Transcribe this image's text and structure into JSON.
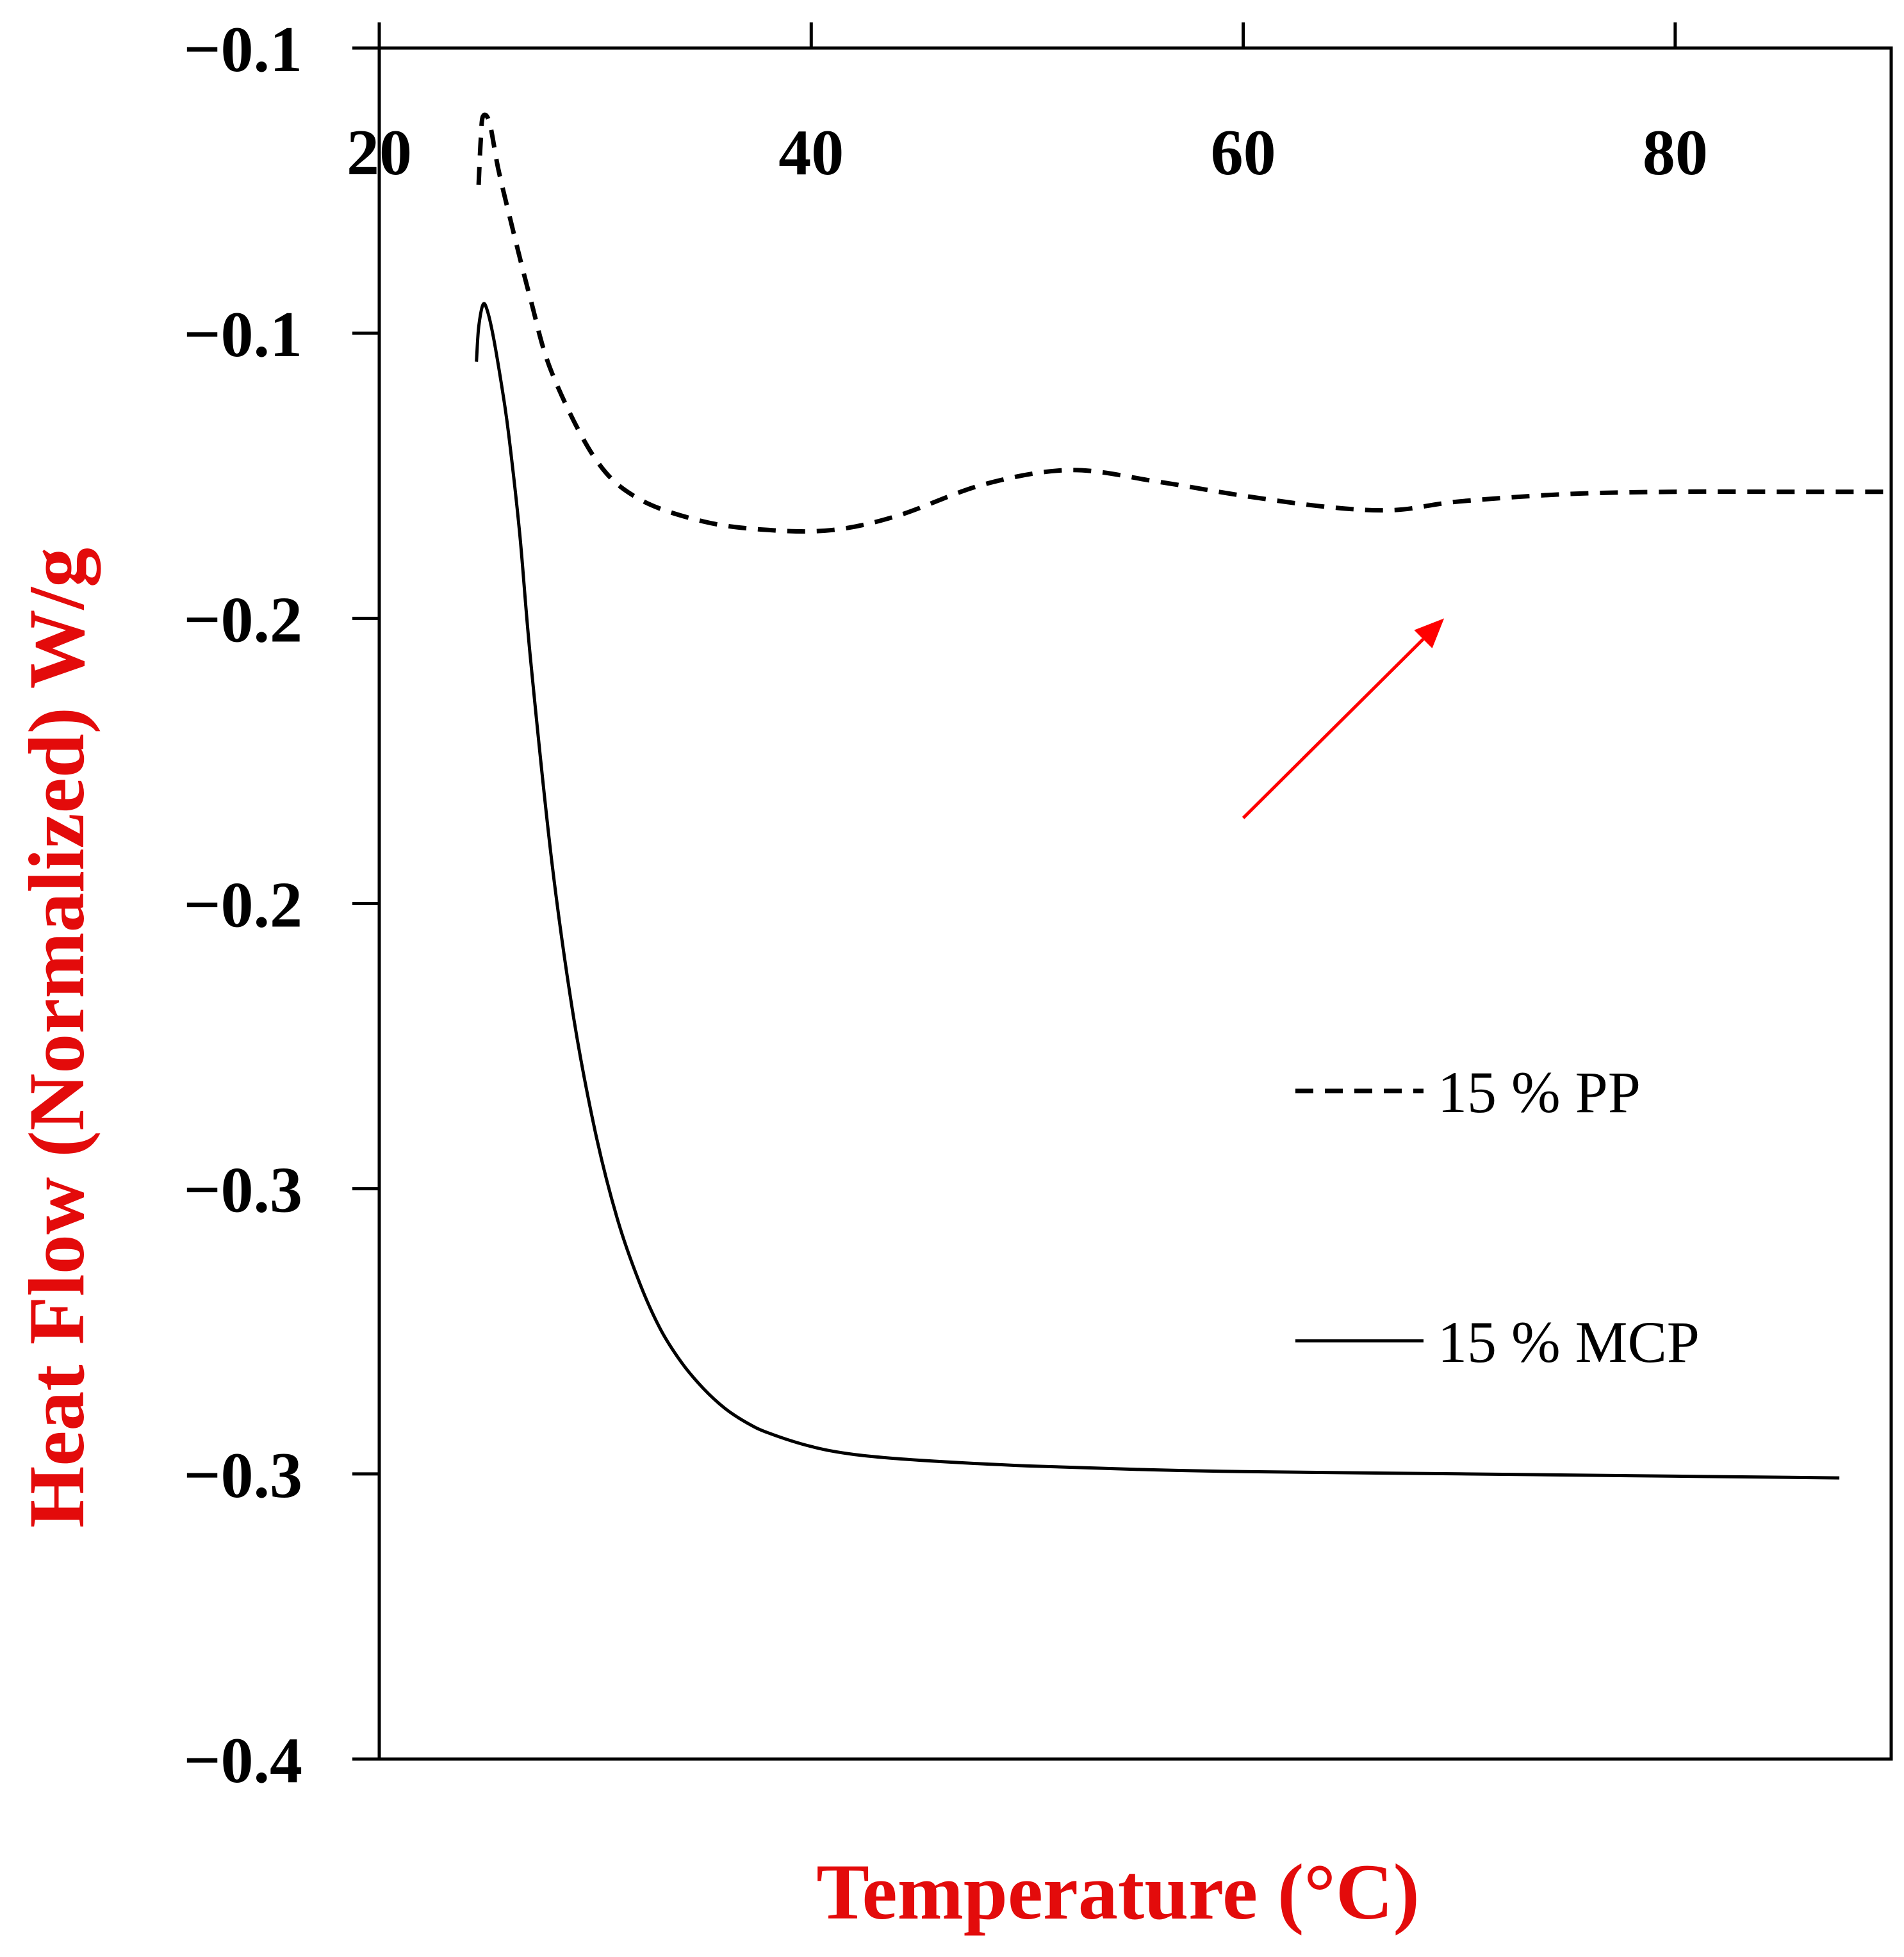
{
  "colors": {
    "axis_title": "#e30b0b",
    "arrow": "#ff0000",
    "series": "#000000",
    "background": "#ffffff"
  },
  "chart_data": {
    "type": "line",
    "title": "",
    "xlabel": "Temperature (°C)",
    "ylabel": "Heat Flow (Normalized) W/g",
    "xlim": [
      20,
      90
    ],
    "ylim": [
      -0.4,
      -0.1
    ],
    "x_ticks": [
      20,
      40,
      60,
      80
    ],
    "x_tick_labels": [
      "20",
      "40",
      "60",
      "80"
    ],
    "x_axis_position": "top",
    "y_ticks": [
      -0.1,
      -0.15,
      -0.2,
      -0.25,
      -0.3,
      -0.35,
      -0.4
    ],
    "y_tick_labels": [
      "−0.1",
      "−0.1",
      "−0.2",
      "−0.2",
      "−0.3",
      "−0.3",
      "−0.4"
    ],
    "grid": false,
    "legend_position": "right-center",
    "annotations": [
      {
        "type": "arrow",
        "from": {
          "x": 60,
          "y": -0.235
        },
        "to": {
          "x": 69.3,
          "y": -0.2
        },
        "color": "#ff0000"
      }
    ],
    "series": [
      {
        "name": "15 % PP",
        "style": "dashed",
        "x": [
          24.6,
          24.7,
          24.8,
          25.1,
          25.5,
          26.0,
          27.0,
          28.0,
          30.0,
          32.0,
          35.0,
          38.0,
          41.0,
          44.0,
          48.0,
          52.0,
          56.0,
          60.0,
          64.0,
          67.0,
          70.0,
          75.0,
          80.0,
          85.0,
          90.0
        ],
        "y": [
          -0.124,
          -0.116,
          -0.112,
          -0.113,
          -0.121,
          -0.129,
          -0.144,
          -0.157,
          -0.172,
          -0.179,
          -0.183,
          -0.1845,
          -0.1845,
          -0.182,
          -0.1765,
          -0.174,
          -0.176,
          -0.1785,
          -0.1805,
          -0.181,
          -0.1795,
          -0.1782,
          -0.1778,
          -0.1778,
          -0.1778
        ]
      },
      {
        "name": "15 % MCP",
        "style": "solid",
        "x": [
          24.5,
          24.6,
          24.8,
          25.0,
          25.3,
          25.7,
          26.0,
          26.5,
          27.0,
          28.0,
          29.0,
          30.0,
          31.0,
          32.0,
          33.0,
          34.0,
          35.0,
          36.0,
          37.0,
          38.0,
          40.0,
          42.0,
          45.0,
          50.0,
          55.0,
          60.0,
          70.0,
          80.0,
          87.6
        ],
        "y": [
          -0.155,
          -0.149,
          -0.145,
          -0.146,
          -0.151,
          -0.16,
          -0.168,
          -0.185,
          -0.207,
          -0.243,
          -0.27,
          -0.29,
          -0.305,
          -0.316,
          -0.3245,
          -0.3305,
          -0.335,
          -0.3385,
          -0.341,
          -0.3428,
          -0.3452,
          -0.3466,
          -0.3476,
          -0.3486,
          -0.3492,
          -0.3496,
          -0.35,
          -0.3504,
          -0.3507
        ]
      }
    ]
  }
}
